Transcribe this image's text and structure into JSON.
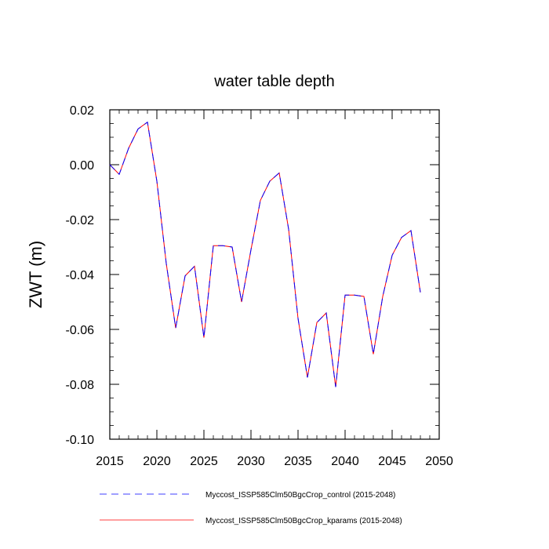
{
  "chart_data": {
    "type": "line",
    "title": "water table depth",
    "xlabel": "",
    "ylabel": "ZWT  (m)",
    "xlim": [
      2015,
      2050
    ],
    "ylim": [
      -0.1,
      0.02
    ],
    "x_ticks": [
      2015,
      2020,
      2025,
      2030,
      2035,
      2040,
      2045,
      2050
    ],
    "x_tick_labels": [
      "2015",
      "2020",
      "2025",
      "2030",
      "2035",
      "2040",
      "2045",
      "2050"
    ],
    "y_ticks": [
      0.02,
      0.0,
      -0.02,
      -0.04,
      -0.06,
      -0.08,
      -0.1
    ],
    "y_tick_labels": [
      "0.02",
      "0.00",
      "-0.02",
      "-0.04",
      "-0.06",
      "-0.08",
      "-0.10"
    ],
    "x": [
      2015,
      2016,
      2017,
      2018,
      2019,
      2020,
      2021,
      2022,
      2023,
      2024,
      2025,
      2026,
      2027,
      2028,
      2029,
      2030,
      2031,
      2032,
      2033,
      2034,
      2035,
      2036,
      2037,
      2038,
      2039,
      2040,
      2041,
      2042,
      2043,
      2044,
      2045,
      2046,
      2047,
      2048
    ],
    "series": [
      {
        "name": "Myccost_ISSP585Clm50BgcCrop_control (2015-2048)",
        "color": "#0000ff",
        "style": "dashed",
        "values": [
          0.0,
          -0.0035,
          0.006,
          0.013,
          0.0155,
          -0.006,
          -0.036,
          -0.0595,
          -0.0405,
          -0.037,
          -0.063,
          -0.0295,
          -0.0295,
          -0.03,
          -0.05,
          -0.031,
          -0.013,
          -0.006,
          -0.003,
          -0.0235,
          -0.056,
          -0.0775,
          -0.0575,
          -0.054,
          -0.081,
          -0.0475,
          -0.0475,
          -0.048,
          -0.069,
          -0.048,
          -0.033,
          -0.0265,
          -0.024,
          -0.0465
        ]
      },
      {
        "name": "Myccost_ISSP585Clm50BgcCrop_kparams (2015-2048)",
        "color": "#ff0000",
        "style": "solid",
        "values": [
          0.0,
          -0.0035,
          0.006,
          0.013,
          0.0155,
          -0.006,
          -0.036,
          -0.0595,
          -0.0405,
          -0.037,
          -0.063,
          -0.0295,
          -0.0295,
          -0.03,
          -0.05,
          -0.031,
          -0.013,
          -0.006,
          -0.003,
          -0.0235,
          -0.056,
          -0.0775,
          -0.0575,
          -0.054,
          -0.081,
          -0.0475,
          -0.0475,
          -0.048,
          -0.069,
          -0.048,
          -0.033,
          -0.0265,
          -0.024,
          -0.0465
        ]
      }
    ]
  }
}
